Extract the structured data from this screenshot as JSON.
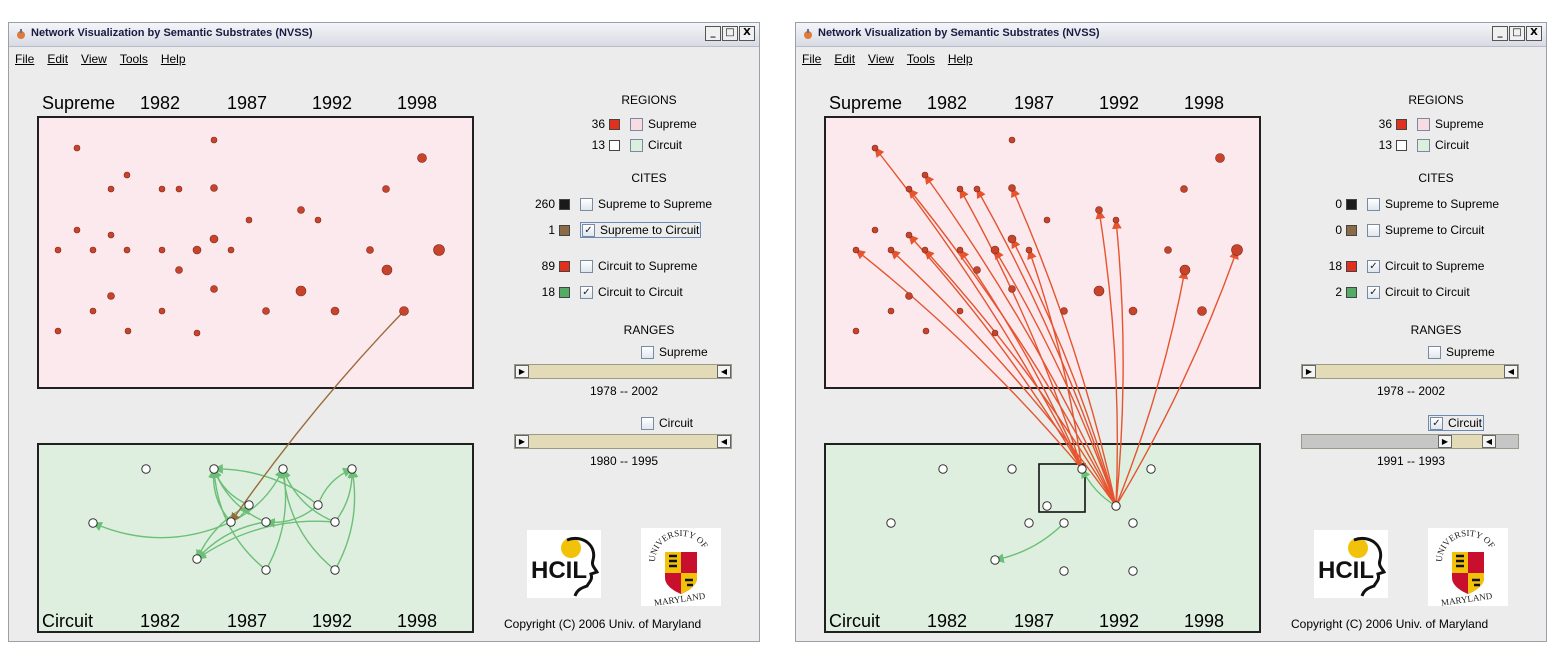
{
  "windows": [
    {
      "title": "Network Visualization by Semantic Substrates (NVSS)",
      "window_buttons": [
        "_",
        "□",
        "X"
      ],
      "menu": [
        "File",
        "Edit",
        "View",
        "Tools",
        "Help"
      ],
      "top_row": {
        "region": "Supreme",
        "years": [
          "1982",
          "1987",
          "1992",
          "1998"
        ]
      },
      "bottom_row": {
        "region": "Circuit",
        "years": [
          "1982",
          "1987",
          "1992",
          "1998"
        ]
      },
      "regions": {
        "header": "REGIONS",
        "items": [
          {
            "count": "36",
            "color": "#e0301e",
            "label": "Supreme",
            "box": "#f9dbe2",
            "checked": false
          },
          {
            "count": "13",
            "color": "#ffffff",
            "label": "Circuit",
            "box": "#dcefdc",
            "checked": false
          }
        ]
      },
      "cites": {
        "header": "CITES",
        "items": [
          {
            "count": "260",
            "color": "#1a1a1a",
            "label": "Supreme to Supreme",
            "checked": false
          },
          {
            "count": "1",
            "color": "#8a6b45",
            "label": "Supreme to Circuit",
            "checked": true,
            "focused": true
          },
          {
            "count": "89",
            "color": "#e0301e",
            "label": "Circuit to Supreme",
            "checked": false
          },
          {
            "count": "18",
            "color": "#55aa66",
            "label": "Circuit to Circuit",
            "checked": true
          }
        ]
      },
      "ranges": {
        "header": "RANGES",
        "supreme": {
          "label": "Supreme",
          "checked": false,
          "from": "1978",
          "sep": "--",
          "to": "2002"
        },
        "circuit": {
          "label": "Circuit",
          "checked": false,
          "from": "1980",
          "sep": "--",
          "to": "1995"
        }
      },
      "logos": {
        "hcil": "HCIL",
        "umd_top": "UNIVERSITY OF",
        "umd_bottom": "MARYLAND"
      },
      "copyright": "Copyright (C) 2006  Univ. of Maryland"
    },
    {
      "title": "Network Visualization by Semantic Substrates (NVSS)",
      "window_buttons": [
        "_",
        "□",
        "X"
      ],
      "menu": [
        "File",
        "Edit",
        "View",
        "Tools",
        "Help"
      ],
      "top_row": {
        "region": "Supreme",
        "years": [
          "1982",
          "1987",
          "1992",
          "1998"
        ]
      },
      "bottom_row": {
        "region": "Circuit",
        "years": [
          "1982",
          "1987",
          "1992",
          "1998"
        ]
      },
      "regions": {
        "header": "REGIONS",
        "items": [
          {
            "count": "36",
            "color": "#e0301e",
            "label": "Supreme",
            "box": "#f9dbe2",
            "checked": false
          },
          {
            "count": "13",
            "color": "#ffffff",
            "label": "Circuit",
            "box": "#dcefdc",
            "checked": false
          }
        ]
      },
      "cites": {
        "header": "CITES",
        "items": [
          {
            "count": "0",
            "color": "#1a1a1a",
            "label": "Supreme to Supreme",
            "checked": false
          },
          {
            "count": "0",
            "color": "#8a6b45",
            "label": "Supreme to Circuit",
            "checked": false
          },
          {
            "count": "18",
            "color": "#e0301e",
            "label": "Circuit to Supreme",
            "checked": true
          },
          {
            "count": "2",
            "color": "#55aa66",
            "label": "Circuit to Circuit",
            "checked": true
          }
        ]
      },
      "ranges": {
        "header": "RANGES",
        "supreme": {
          "label": "Supreme",
          "checked": false,
          "from": "1978",
          "sep": "--",
          "to": "2002"
        },
        "circuit": {
          "label": "Circuit",
          "checked": true,
          "from": "1991",
          "sep": "--",
          "to": "1993"
        }
      },
      "logos": {
        "hcil": "HCIL",
        "umd_top": "UNIVERSITY OF",
        "umd_bottom": "MARYLAND"
      },
      "copyright": "Copyright (C) 2006  Univ. of Maryland"
    }
  ],
  "colors": {
    "supreme_node": "#c8432b",
    "circuit_node": "#ffffff",
    "supreme_to_circuit_edge": "#9a6b3a",
    "circuit_to_circuit_edge": "#6cbf77",
    "circuit_to_supreme_edge": "#e5542f",
    "supreme_bg": "#fbe9ee",
    "circuit_bg": "#deefdf"
  }
}
